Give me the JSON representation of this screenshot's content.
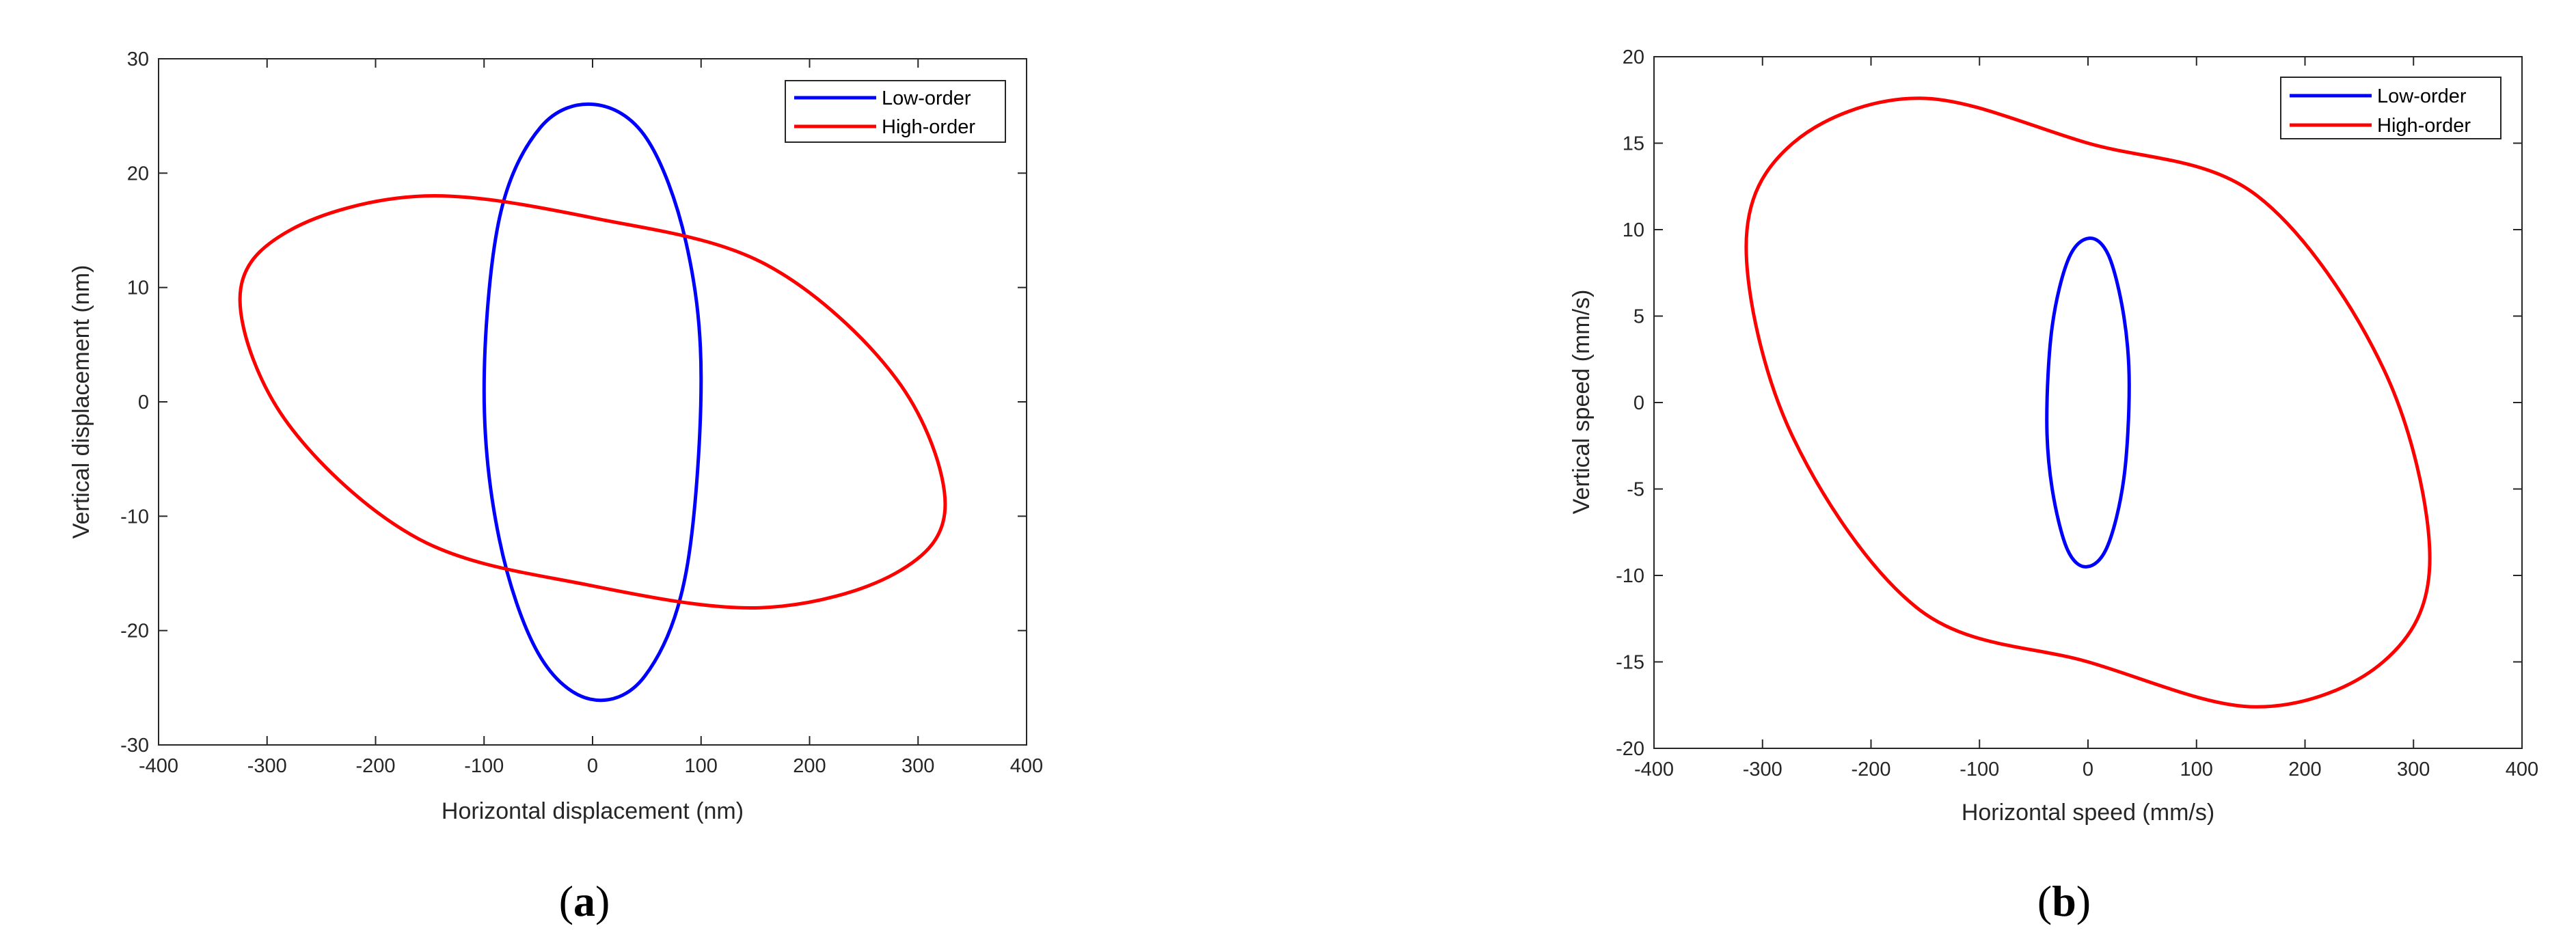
{
  "chart_data": [
    {
      "type": "line",
      "caption_letter": "a",
      "xlabel": "Horizontal displacement (nm)",
      "ylabel": "Vertical displacement (nm)",
      "xlim": [
        -400,
        400
      ],
      "ylim": [
        -30,
        30
      ],
      "xticks": [
        -400,
        -300,
        -200,
        -100,
        0,
        100,
        200,
        300,
        400
      ],
      "yticks": [
        -30,
        -20,
        -10,
        0,
        10,
        20,
        30
      ],
      "legend_position": "top-right",
      "series": [
        {
          "name": "Low-order",
          "color": "#0000ff",
          "x": [
            100,
            86,
            50,
            2,
            -48,
            -86,
            -100,
            -86,
            -50,
            -2,
            48,
            86,
            100
          ],
          "y": [
            2,
            14,
            23,
            26,
            24,
            16,
            1,
            -12,
            -22,
            -26,
            -24,
            -15,
            2
          ]
        },
        {
          "name": "High-order",
          "color": "#ff0000",
          "x": [
            325,
            280,
            160,
            5,
            -155,
            -279,
            -325,
            -280,
            -160,
            -5,
            155,
            279,
            325
          ],
          "y": [
            -9,
            2,
            12,
            16,
            18,
            15,
            9,
            -2,
            -12,
            -16,
            -18,
            -15,
            -9
          ]
        }
      ]
    },
    {
      "type": "line",
      "caption_letter": "b",
      "xlabel": "Horizontal speed (mm/s)",
      "ylabel": "Vertical speed (mm/s)",
      "xlim": [
        -400,
        400
      ],
      "ylim": [
        -20,
        20
      ],
      "xticks": [
        -400,
        -300,
        -200,
        -100,
        0,
        100,
        200,
        300,
        400
      ],
      "yticks": [
        -20,
        -15,
        -10,
        -5,
        0,
        5,
        10,
        15,
        20
      ],
      "legend_position": "top-right",
      "series": [
        {
          "name": "Low-order",
          "color": "#0000ff",
          "x": [
            38,
            33,
            19,
            1,
            -18,
            -33,
            -38,
            -33,
            -19,
            -1,
            18,
            33,
            38
          ],
          "y": [
            1,
            5,
            8.5,
            9.5,
            8.3,
            4.4,
            -1,
            -5,
            -8.5,
            -9.5,
            -8.3,
            -4.4,
            1
          ]
        },
        {
          "name": "High-order",
          "color": "#ff0000",
          "x": [
            315,
            272,
            155,
            0,
            -155,
            -272,
            -315,
            -272,
            -155,
            0,
            155,
            272,
            315
          ],
          "y": [
            -9,
            2,
            12,
            15,
            17.6,
            15,
            9,
            -2,
            -12,
            -15,
            -17.6,
            -15,
            -9
          ]
        }
      ]
    }
  ]
}
